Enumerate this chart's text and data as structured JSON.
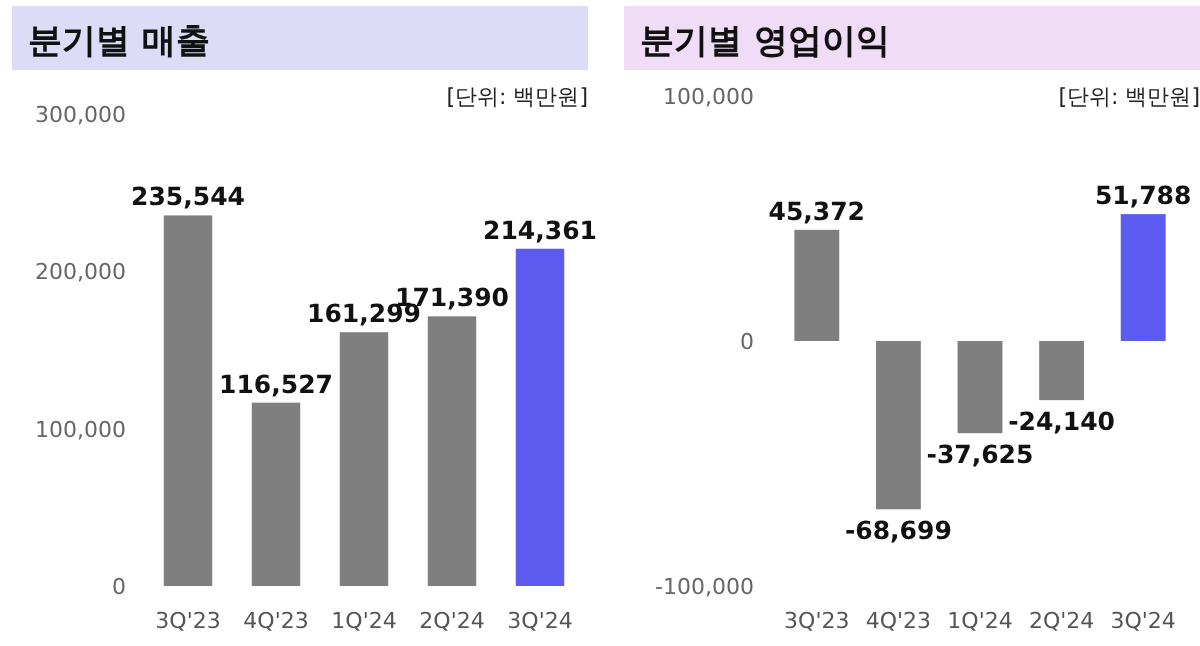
{
  "chart_data": [
    {
      "type": "bar",
      "title": "분기별 매출",
      "annotations": [
        "[단위: 백만원]"
      ],
      "categories": [
        "3Q'23",
        "4Q'23",
        "1Q'24",
        "2Q'24",
        "3Q'24"
      ],
      "values": [
        235544,
        116527,
        161299,
        171390,
        214361
      ],
      "colors": [
        "#7f7f7f",
        "#7f7f7f",
        "#7f7f7f",
        "#7f7f7f",
        "#5b5bf0"
      ],
      "value_labels": [
        "235,544",
        "116,527",
        "161,299",
        "171,390",
        "214,361"
      ],
      "ylim": [
        0,
        300000
      ],
      "yticks": [
        {
          "value": 0,
          "label": "0"
        },
        {
          "value": 100000,
          "label": "100,000"
        },
        {
          "value": 200000,
          "label": "200,000"
        },
        {
          "value": 300000,
          "label": "300,000"
        }
      ]
    },
    {
      "type": "bar",
      "title": "분기별 영업이익",
      "annotations": [
        "[단위: 백만원]"
      ],
      "categories": [
        "3Q'23",
        "4Q'23",
        "1Q'24",
        "2Q'24",
        "3Q'24"
      ],
      "values": [
        45372,
        -68699,
        -37625,
        -24140,
        51788
      ],
      "colors": [
        "#7f7f7f",
        "#7f7f7f",
        "#7f7f7f",
        "#7f7f7f",
        "#5b5bf0"
      ],
      "value_labels": [
        "45,372",
        "-68,699",
        "-37,625",
        "-24,140",
        "51,788"
      ],
      "ylim": [
        -100000,
        100000
      ],
      "yticks": [
        {
          "value": -100000,
          "label": "-100,000"
        },
        {
          "value": 0,
          "label": "0"
        },
        {
          "value": 100000,
          "label": "100,000"
        }
      ]
    }
  ]
}
